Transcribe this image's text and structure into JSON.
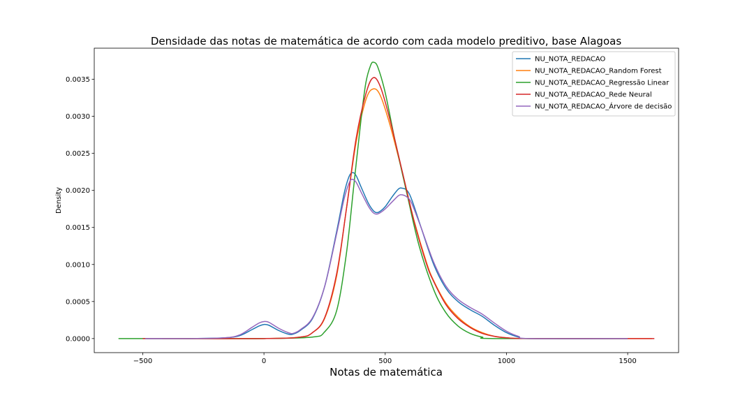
{
  "chart_data": {
    "type": "line",
    "title": "Densidade das notas de matemática de acordo com cada modelo preditivo, base Alagoas",
    "xlabel": "Notas de matemática",
    "ylabel": "Density",
    "xlim": [
      -700,
      1710
    ],
    "ylim": [
      -0.00019,
      0.00392
    ],
    "xticks": [
      -500,
      0,
      500,
      1000,
      1500
    ],
    "xtick_labels": [
      "−500",
      "0",
      "500",
      "1000",
      "1500"
    ],
    "yticks": [
      0.0,
      0.0005,
      0.001,
      0.0015,
      0.002,
      0.0025,
      0.003,
      0.0035
    ],
    "ytick_labels": [
      "0.0000",
      "0.0005",
      "0.0010",
      "0.0015",
      "0.0020",
      "0.0025",
      "0.0030",
      "0.0035"
    ],
    "grid": false,
    "legend_position": "top-right",
    "series": [
      {
        "name": "NU_NOTA_REDACAO",
        "color": "#1f77b4",
        "points": [
          [
            -490,
            0
          ],
          [
            -300,
            0
          ],
          [
            -160,
            1e-05
          ],
          [
            -100,
            4e-05
          ],
          [
            -50,
            0.00012
          ],
          [
            -20,
            0.00017
          ],
          [
            0,
            0.00019
          ],
          [
            20,
            0.00018
          ],
          [
            60,
            0.00011
          ],
          [
            100,
            6e-05
          ],
          [
            120,
            6e-05
          ],
          [
            150,
            0.00011
          ],
          [
            200,
            0.00027
          ],
          [
            250,
            0.0007
          ],
          [
            300,
            0.00145
          ],
          [
            330,
            0.00195
          ],
          [
            350,
            0.00218
          ],
          [
            365,
            0.00224
          ],
          [
            380,
            0.0022
          ],
          [
            400,
            0.00205
          ],
          [
            430,
            0.00183
          ],
          [
            450,
            0.00173
          ],
          [
            465,
            0.0017
          ],
          [
            480,
            0.00172
          ],
          [
            500,
            0.00178
          ],
          [
            530,
            0.00192
          ],
          [
            555,
            0.00202
          ],
          [
            570,
            0.00203
          ],
          [
            590,
            0.002
          ],
          [
            610,
            0.00187
          ],
          [
            650,
            0.00148
          ],
          [
            700,
            0.001
          ],
          [
            750,
            0.00068
          ],
          [
            800,
            0.0005
          ],
          [
            850,
            0.00039
          ],
          [
            900,
            0.0003
          ],
          [
            950,
            0.00018
          ],
          [
            1000,
            8e-05
          ],
          [
            1050,
            2e-05
          ],
          [
            1100,
            0
          ],
          [
            1500,
            0
          ]
        ]
      },
      {
        "name": "NU_NOTA_REDACAO_Random Forest",
        "color": "#ff7f0e",
        "points": [
          [
            -420,
            0
          ],
          [
            0,
            0
          ],
          [
            150,
            2e-05
          ],
          [
            200,
            8e-05
          ],
          [
            250,
            0.00027
          ],
          [
            300,
            0.00085
          ],
          [
            340,
            0.00175
          ],
          [
            380,
            0.00265
          ],
          [
            420,
            0.00322
          ],
          [
            450,
            0.00337
          ],
          [
            480,
            0.00328
          ],
          [
            520,
            0.00288
          ],
          [
            570,
            0.00225
          ],
          [
            620,
            0.00158
          ],
          [
            670,
            0.00103
          ],
          [
            700,
            0.00078
          ],
          [
            750,
            0.00048
          ],
          [
            800,
            0.00029
          ],
          [
            850,
            0.00016
          ],
          [
            900,
            8e-05
          ],
          [
            950,
            3e-05
          ],
          [
            1000,
            1e-05
          ],
          [
            1100,
            0
          ],
          [
            1600,
            0
          ]
        ]
      },
      {
        "name": "NU_NOTA_REDACAO_Regressão Linear",
        "color": "#2ca02c",
        "points": [
          [
            -600,
            0
          ],
          [
            -300,
            0
          ],
          [
            0,
            0
          ],
          [
            200,
            2e-05
          ],
          [
            250,
            9e-05
          ],
          [
            300,
            0.00038
          ],
          [
            340,
            0.00115
          ],
          [
            370,
            0.00205
          ],
          [
            400,
            0.00295
          ],
          [
            420,
            0.00345
          ],
          [
            440,
            0.00369
          ],
          [
            453,
            0.00373
          ],
          [
            470,
            0.00366
          ],
          [
            500,
            0.00332
          ],
          [
            540,
            0.00268
          ],
          [
            590,
            0.00195
          ],
          [
            640,
            0.00125
          ],
          [
            700,
            0.00066
          ],
          [
            750,
            0.00035
          ],
          [
            800,
            0.00017
          ],
          [
            850,
            7e-05
          ],
          [
            900,
            2e-05
          ],
          [
            950,
            0
          ],
          [
            1500,
            0
          ]
        ]
      },
      {
        "name": "NU_NOTA_REDACAO_Rede Neural",
        "color": "#d62728",
        "points": [
          [
            -500,
            0
          ],
          [
            0,
            0
          ],
          [
            150,
            2e-05
          ],
          [
            200,
            8e-05
          ],
          [
            250,
            0.00028
          ],
          [
            300,
            0.00088
          ],
          [
            340,
            0.00175
          ],
          [
            380,
            0.0027
          ],
          [
            420,
            0.0033
          ],
          [
            450,
            0.00352
          ],
          [
            480,
            0.0034
          ],
          [
            520,
            0.00295
          ],
          [
            570,
            0.00226
          ],
          [
            620,
            0.00157
          ],
          [
            670,
            0.00101
          ],
          [
            700,
            0.00077
          ],
          [
            750,
            0.00046
          ],
          [
            800,
            0.00027
          ],
          [
            850,
            0.00015
          ],
          [
            900,
            7e-05
          ],
          [
            950,
            3e-05
          ],
          [
            1000,
            1e-05
          ],
          [
            1100,
            0
          ],
          [
            1610,
            0
          ]
        ]
      },
      {
        "name": "NU_NOTA_REDACAO_Árvore de decisão",
        "color": "#9467bd",
        "points": [
          [
            -490,
            0
          ],
          [
            -300,
            0
          ],
          [
            -160,
            1e-05
          ],
          [
            -100,
            5e-05
          ],
          [
            -50,
            0.00015
          ],
          [
            -20,
            0.00021
          ],
          [
            0,
            0.00023
          ],
          [
            20,
            0.00022
          ],
          [
            60,
            0.00014
          ],
          [
            100,
            8e-05
          ],
          [
            120,
            7e-05
          ],
          [
            150,
            0.00012
          ],
          [
            200,
            0.00028
          ],
          [
            250,
            0.0007
          ],
          [
            300,
            0.00142
          ],
          [
            330,
            0.00188
          ],
          [
            350,
            0.00209
          ],
          [
            362,
            0.00215
          ],
          [
            380,
            0.00211
          ],
          [
            400,
            0.00198
          ],
          [
            430,
            0.00179
          ],
          [
            450,
            0.0017
          ],
          [
            465,
            0.00168
          ],
          [
            480,
            0.0017
          ],
          [
            500,
            0.00175
          ],
          [
            530,
            0.00185
          ],
          [
            555,
            0.00193
          ],
          [
            570,
            0.00194
          ],
          [
            590,
            0.00191
          ],
          [
            610,
            0.00182
          ],
          [
            650,
            0.00148
          ],
          [
            700,
            0.00103
          ],
          [
            750,
            0.00071
          ],
          [
            800,
            0.00053
          ],
          [
            850,
            0.00042
          ],
          [
            900,
            0.00033
          ],
          [
            950,
            0.00021
          ],
          [
            1000,
            0.0001
          ],
          [
            1050,
            3e-05
          ],
          [
            1100,
            0
          ],
          [
            1500,
            0
          ]
        ]
      }
    ]
  }
}
